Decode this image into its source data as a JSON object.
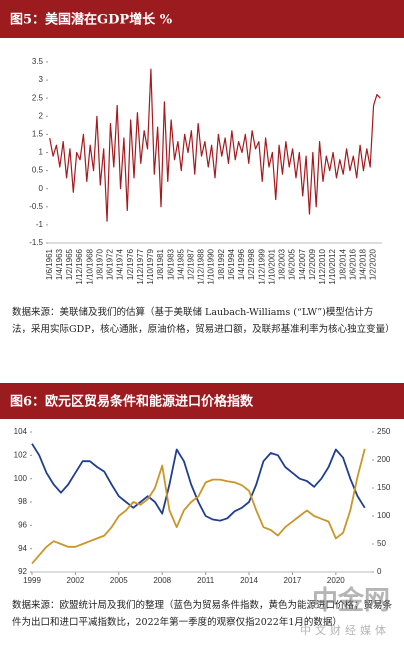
{
  "chart_data": [
    {
      "type": "line",
      "title": "图5：美国潜在GDP增长 %",
      "categories": [
        "1/6/1961",
        null,
        null,
        "1/4/1963",
        null,
        null,
        "1/2/1965",
        null,
        null,
        "1/12/1966",
        null,
        null,
        "1/10/1968",
        null,
        null,
        "1/8/1970",
        null,
        null,
        "1/6/1972",
        null,
        null,
        "1/4/1974",
        null,
        null,
        "1/2/1976",
        null,
        null,
        "1/12/1977",
        null,
        null,
        "1/10/1979",
        null,
        null,
        "1/8/1981",
        null,
        null,
        "1/6/1983",
        null,
        null,
        "1/4/1985",
        null,
        null,
        "1/2/1987",
        null,
        null,
        "1/12/1988",
        null,
        null,
        "1/10/1990",
        null,
        null,
        "1/8/1992",
        null,
        null,
        "1/6/1994",
        null,
        null,
        "1/4/1996",
        null,
        null,
        "1/2/1998",
        null,
        null,
        "1/12/1999",
        null,
        null,
        "1/10/2001",
        null,
        null,
        "1/8/2003",
        null,
        null,
        "1/6/2005",
        null,
        null,
        "1/4/2007",
        null,
        null,
        "1/2/2009",
        null,
        null,
        "1/12/2010",
        null,
        null,
        "1/10/2012",
        null,
        null,
        "1/8/2014",
        null,
        null,
        "1/6/2016",
        null,
        null,
        "1/4/2018",
        null,
        null,
        "1/2/2020",
        null,
        null
      ],
      "series": [
        {
          "color": "#a6191e",
          "values": [
            1.4,
            0.9,
            1.2,
            0.6,
            1.3,
            0.3,
            1.1,
            -0.1,
            1.0,
            0.8,
            1.5,
            0.2,
            1.2,
            0.5,
            2.0,
            0.1,
            1.1,
            -0.9,
            1.8,
            0.6,
            2.3,
            0.0,
            1.4,
            -0.6,
            1.9,
            0.3,
            2.1,
            0.7,
            1.6,
            1.1,
            3.3,
            0.4,
            1.7,
            -0.5,
            2.4,
            0.2,
            1.9,
            0.8,
            1.3,
            0.5,
            1.5,
            1.0,
            1.6,
            0.4,
            1.8,
            0.9,
            1.3,
            0.6,
            1.2,
            0.3,
            1.5,
            0.9,
            1.4,
            0.7,
            1.6,
            0.8,
            1.3,
            1.0,
            1.5,
            0.7,
            1.6,
            1.1,
            1.3,
            0.2,
            1.4,
            0.6,
            1.0,
            -0.3,
            1.2,
            0.4,
            1.3,
            0.6,
            1.1,
            0.3,
            1.0,
            -0.2,
            0.9,
            -0.7,
            1.0,
            -0.5,
            1.3,
            0.2,
            0.9,
            0.5,
            1.0,
            0.3,
            0.8,
            0.4,
            1.1,
            0.5,
            0.9,
            0.3,
            1.2,
            0.5,
            1.1,
            0.6,
            2.3,
            2.6,
            2.5
          ]
        }
      ],
      "ylim": [
        -1.5,
        3.5
      ],
      "yticks": [
        -1.5,
        -1,
        -0.5,
        0,
        0.5,
        1,
        1.5,
        2,
        2.5,
        3,
        3.5
      ]
    },
    {
      "type": "line",
      "title": "图6：欧元区贸易条件和能源进口价格指数",
      "x": [
        1999,
        1999.5,
        2000,
        2000.5,
        2001,
        2001.5,
        2002,
        2002.5,
        2003,
        2003.5,
        2004,
        2004.5,
        2005,
        2005.5,
        2006,
        2006.5,
        2007,
        2007.5,
        2008,
        2008.5,
        2009,
        2009.5,
        2010,
        2010.5,
        2011,
        2011.5,
        2012,
        2012.5,
        2013,
        2013.5,
        2014,
        2014.5,
        2015,
        2015.5,
        2016,
        2016.5,
        2017,
        2017.5,
        2018,
        2018.5,
        2019,
        2019.5,
        2020,
        2020.5,
        2021,
        2021.5,
        2022
      ],
      "series": [
        {
          "color": "#1f3e8f",
          "values": [
            103,
            102,
            100.5,
            99.5,
            98.8,
            99.5,
            100.5,
            101.5,
            101.5,
            101.0,
            100.6,
            99.5,
            98.5,
            98.0,
            97.5,
            98,
            98.5,
            98.0,
            97.0,
            99.5,
            102.5,
            101.5,
            99.5,
            98.0,
            96.8,
            96.5,
            96.4,
            96.6,
            97.2,
            97.5,
            98.0,
            99.5,
            101.5,
            102.2,
            102.0,
            101.0,
            100.5,
            100.0,
            99.8,
            99.3,
            100.0,
            101.0,
            102.5,
            101.8,
            100.0,
            98.5,
            97.5
          ]
        },
        {
          "color": "#c8962a",
          "axis": "y2",
          "values": [
            15,
            30,
            45,
            55,
            50,
            45,
            45,
            50,
            55,
            60,
            65,
            80,
            100,
            110,
            125,
            120,
            130,
            150,
            190,
            110,
            80,
            110,
            125,
            135,
            160,
            165,
            165,
            162,
            160,
            155,
            145,
            110,
            80,
            75,
            65,
            80,
            90,
            100,
            110,
            100,
            95,
            90,
            60,
            70,
            110,
            170,
            220
          ]
        }
      ],
      "xlim": [
        1999,
        2022.5
      ],
      "xticks": [
        1999,
        2002,
        2005,
        2008,
        2011,
        2014,
        2017,
        2020
      ],
      "ylim": [
        92,
        104
      ],
      "yticks": [
        92,
        94,
        96,
        98,
        100,
        102,
        104
      ],
      "y2lim": [
        0,
        250
      ],
      "y2ticks": [
        0,
        50,
        100,
        150,
        200,
        250
      ]
    }
  ],
  "notes": [
    "数据来源：美联储及我们的估算（基于美联储 Laubach-Williams (“LW”)模型估计方法，采用实际GDP，核心通胀，原油价格，贸易进口额，及联邦基准利率为核心独立变量）",
    "数据来源：欧盟统计局及我们的整理（蓝色为贸易条件指数，黄色为能源进口价格；贸易条件为出口和进口平减指数比，2022年第一季度的观察仅指2022年1月的数据）"
  ],
  "watermark": {
    "name": "中金网",
    "tagline": "中文财经媒体"
  }
}
